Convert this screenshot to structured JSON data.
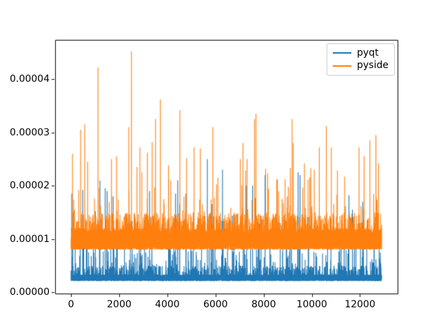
{
  "figure": {
    "background": "#ffffff",
    "frame_color": "#000000"
  },
  "chart_data": {
    "type": "line",
    "title": "",
    "xlabel": "",
    "ylabel": "",
    "grid": false,
    "legend_position": "upper right",
    "x_ticks": [
      0,
      2000,
      4000,
      6000,
      8000,
      10000,
      12000
    ],
    "x_tick_labels": [
      "0",
      "2000",
      "4000",
      "6000",
      "8000",
      "10000",
      "12000"
    ],
    "y_ticks": [
      0,
      1e-05,
      2e-05,
      3e-05,
      4e-05
    ],
    "y_tick_labels": [
      "0.00000",
      "0.00001",
      "0.00002",
      "0.00003",
      "0.00004"
    ],
    "xlim": [
      -660,
      13560
    ],
    "ylim": [
      -2e-07,
      4.742e-05
    ],
    "n_points": 12900,
    "x_step": 1,
    "series": [
      {
        "name": "pyqt",
        "color": "#1f77b4",
        "seed": 3,
        "baseline": {
          "min": 2.2e-06,
          "max": 3.3e-06
        },
        "spike_layers": [
          {
            "prob": 0.05,
            "min": 3.3e-06,
            "max": 5e-06
          },
          {
            "prob": 0.012,
            "min": 5e-06,
            "max": 9e-06
          },
          {
            "prob": 0.003,
            "min": 9e-06,
            "max": 1.55e-05
          }
        ],
        "peaks": [
          [
            30,
            1.85e-05
          ],
          [
            485,
            1.92e-05
          ],
          [
            1200,
            2.1e-05
          ],
          [
            1420,
            1.95e-05
          ],
          [
            1500,
            1.9e-05
          ],
          [
            1750,
            1.8e-05
          ],
          [
            3260,
            1.9e-05
          ],
          [
            4050,
            2.12e-05
          ],
          [
            4340,
            1.85e-05
          ],
          [
            4430,
            2.1e-05
          ],
          [
            4510,
            1.66e-05
          ],
          [
            4770,
            1.85e-05
          ],
          [
            5660,
            2.5e-05
          ],
          [
            5860,
            1.65e-05
          ],
          [
            6290,
            2.3e-05
          ],
          [
            7290,
            2e-05
          ],
          [
            7540,
            2e-05
          ],
          [
            8060,
            2.2e-05
          ],
          [
            9430,
            2.25e-05
          ],
          [
            9510,
            2.2e-05
          ],
          [
            11540,
            1.82e-05
          ],
          [
            12110,
            1.7e-05
          ]
        ]
      },
      {
        "name": "pyside",
        "color": "#ff7f0e",
        "seed": 11,
        "baseline": {
          "min": 8.1e-06,
          "max": 9.9e-06
        },
        "block": {
          "top_min": 9.4e-06,
          "top_max": 1.07e-05,
          "seg_min": 60,
          "seg_max": 300
        },
        "spike_layers": [
          {
            "prob": 0.25,
            "min": 1e-05,
            "max": 1.2e-05
          },
          {
            "prob": 0.05,
            "min": 1.2e-05,
            "max": 1.5e-05
          },
          {
            "prob": 0.004,
            "min": 1.5e-05,
            "max": 2e-05
          },
          {
            "prob": 0.001,
            "min": 2e-05,
            "max": 2.4e-05
          }
        ],
        "peaks": [
          [
            60,
            2.6e-05
          ],
          [
            400,
            3.05e-05
          ],
          [
            570,
            3.15e-05
          ],
          [
            690,
            2.45e-05
          ],
          [
            1120,
            4.22e-05
          ],
          [
            1680,
            2.5e-05
          ],
          [
            1890,
            2.55e-05
          ],
          [
            2400,
            3.1e-05
          ],
          [
            2510,
            4.52e-05
          ],
          [
            2740,
            2.35e-05
          ],
          [
            2860,
            2.72e-05
          ],
          [
            2940,
            2.25e-05
          ],
          [
            3170,
            2.62e-05
          ],
          [
            3370,
            2.82e-05
          ],
          [
            3510,
            3.25e-05
          ],
          [
            3710,
            3.62e-05
          ],
          [
            4520,
            3.42e-05
          ],
          [
            4800,
            2.52e-05
          ],
          [
            5110,
            2.72e-05
          ],
          [
            5370,
            2.7e-05
          ],
          [
            5890,
            3.1e-05
          ],
          [
            6100,
            2.15e-05
          ],
          [
            7030,
            2.5e-05
          ],
          [
            7140,
            2.8e-05
          ],
          [
            7310,
            2.5e-05
          ],
          [
            7620,
            3.25e-05
          ],
          [
            7680,
            3.35e-05
          ],
          [
            8080,
            2.32e-05
          ],
          [
            8890,
            2.12e-05
          ],
          [
            9180,
            3.25e-05
          ],
          [
            9230,
            2.8e-05
          ],
          [
            9690,
            2.42e-05
          ],
          [
            10310,
            2.72e-05
          ],
          [
            10600,
            3.12e-05
          ],
          [
            10810,
            2.72e-05
          ],
          [
            11960,
            2.72e-05
          ],
          [
            12170,
            2.55e-05
          ],
          [
            12410,
            2.85e-05
          ],
          [
            12660,
            2.95e-05
          ],
          [
            12770,
            2.42e-05
          ]
        ]
      }
    ]
  }
}
